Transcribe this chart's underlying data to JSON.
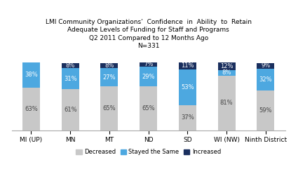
{
  "categories": [
    "MI (UP)",
    "MN",
    "MT",
    "ND",
    "SD",
    "WI (NW)",
    "Ninth District"
  ],
  "decreased": [
    63,
    61,
    65,
    65,
    37,
    81,
    59
  ],
  "stayed_same": [
    38,
    31,
    27,
    29,
    53,
    8,
    32
  ],
  "increased": [
    0,
    8,
    8,
    7,
    11,
    12,
    9
  ],
  "decreased_labels": [
    "63%",
    "61%",
    "65%",
    "65%",
    "37%",
    "81%",
    "59%"
  ],
  "stayed_same_labels": [
    "38%",
    "31%",
    "27%",
    "29%",
    "53%",
    "8%",
    "32%"
  ],
  "increased_labels": [
    "",
    "8%",
    "8%",
    "7%",
    "11%",
    "12%",
    "9%"
  ],
  "color_decreased": "#c8c8c8",
  "color_stayed": "#4da8e0",
  "color_increased": "#1a2f5e",
  "title_line1": "LMI Community Organizations’  Confidence  in  Ability  to  Retain",
  "title_line2": "Adequate Levels of Funding for Staff and Programs",
  "title_line3": "Q2 2011 Compared to 12 Months Ago",
  "title_line4": "N=331",
  "legend_labels": [
    "Decreased",
    "Stayed the Same",
    "Increased"
  ],
  "font_size": 6.5,
  "title_font_size": 6.5,
  "label_font_size": 6.0,
  "bar_width": 0.45,
  "ylim": [
    0,
    118
  ]
}
